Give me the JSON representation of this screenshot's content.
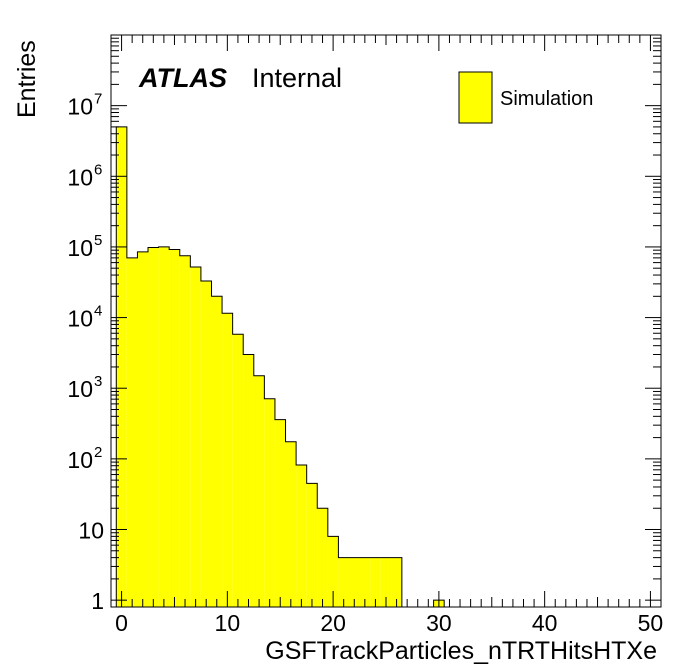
{
  "labels": {
    "atlas": "ATLAS",
    "internal": "Internal",
    "legend_entry": "Simulation"
  },
  "colors": {
    "fill": "#ffff00",
    "line": "#000000"
  },
  "chart_data": {
    "type": "bar",
    "xlabel": "GSFTrackParticles_nTRTHitsHTXe",
    "ylabel": "Entries",
    "xlim": [
      -1,
      51
    ],
    "ylim": [
      0.8,
      100000000
    ],
    "y_scale": "log",
    "x_ticks": [
      "0",
      "10",
      "20",
      "30",
      "40",
      "50"
    ],
    "y_ticks": [
      {
        "value": 1,
        "base": "1",
        "exp": ""
      },
      {
        "value": 10,
        "base": "10",
        "exp": ""
      },
      {
        "value": 100,
        "base": "10",
        "exp": "2"
      },
      {
        "value": 1000,
        "base": "10",
        "exp": "3"
      },
      {
        "value": 10000,
        "base": "10",
        "exp": "4"
      },
      {
        "value": 100000,
        "base": "10",
        "exp": "5"
      },
      {
        "value": 1000000,
        "base": "10",
        "exp": "6"
      },
      {
        "value": 10000000,
        "base": "10",
        "exp": "7"
      }
    ],
    "bin_edges_start": -0.5,
    "bin_width": 1,
    "values": [
      5000000,
      70000,
      85000,
      98000,
      100000,
      92000,
      75000,
      52000,
      33000,
      20000,
      11500,
      5800,
      3000,
      1500,
      710,
      360,
      175,
      82,
      45,
      20,
      8,
      4,
      4,
      4,
      4,
      4,
      4,
      0,
      0,
      0,
      1
    ],
    "legend": [
      "Simulation"
    ],
    "legend_position": "top-right",
    "grid": false
  }
}
